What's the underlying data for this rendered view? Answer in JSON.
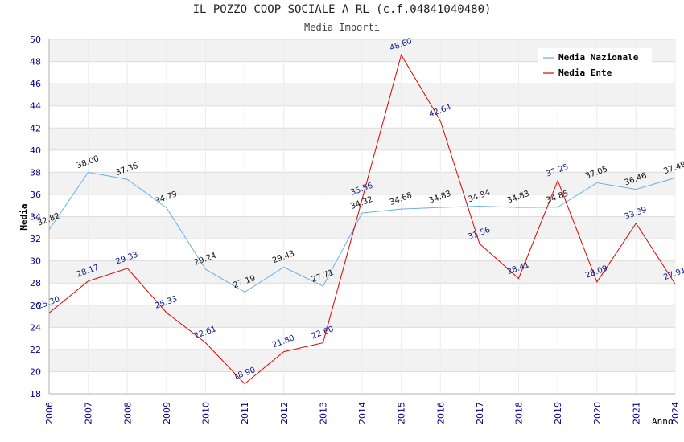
{
  "chart_data": {
    "type": "line",
    "title": "IL POZZO COOP SOCIALE A RL (c.f.04841040480)",
    "subtitle": "Media Importi",
    "xlabel": "Anno",
    "ylabel": "Media",
    "ylim": [
      18,
      50
    ],
    "yticks": [
      "18",
      "20",
      "22",
      "24",
      "26",
      "28",
      "30",
      "32",
      "34",
      "36",
      "38",
      "40",
      "42",
      "44",
      "46",
      "48",
      "50"
    ],
    "categories": [
      "2006",
      "2007",
      "2008",
      "2009",
      "2010",
      "2011",
      "2012",
      "2013",
      "2014",
      "2015",
      "2016",
      "2017",
      "2018",
      "2019",
      "2020",
      "2021",
      "2024"
    ],
    "series": [
      {
        "name": "Media Nazionale",
        "color": "#6aaee8",
        "values": [
          32.82,
          38.0,
          37.36,
          34.79,
          29.24,
          27.19,
          29.43,
          27.71,
          34.32,
          34.68,
          34.83,
          34.94,
          34.83,
          34.85,
          37.05,
          36.46,
          37.49
        ],
        "labels": [
          "32.82",
          "38.00",
          "37.36",
          "34.79",
          "29.24",
          "27.19",
          "29.43",
          "27.71",
          "34.32",
          "34.68",
          "34.83",
          "34.94",
          "34.83",
          "34.85",
          "37.05",
          "36.46",
          "37.49"
        ]
      },
      {
        "name": "Media Ente",
        "color": "#e00000",
        "values": [
          25.3,
          28.17,
          29.33,
          25.33,
          22.61,
          18.9,
          21.8,
          22.6,
          35.56,
          48.6,
          42.64,
          31.56,
          28.41,
          37.25,
          28.09,
          33.39,
          27.91
        ],
        "labels": [
          "25.30",
          "28.17",
          "29.33",
          "25.33",
          "22.61",
          "18.90",
          "21.80",
          "22.60",
          "35.56",
          "48.60",
          "42.64",
          "31.56",
          "28.41",
          "37.25",
          "28.09",
          "33.39",
          "27.91"
        ]
      }
    ],
    "grid": true,
    "legend_position": "top-right"
  }
}
